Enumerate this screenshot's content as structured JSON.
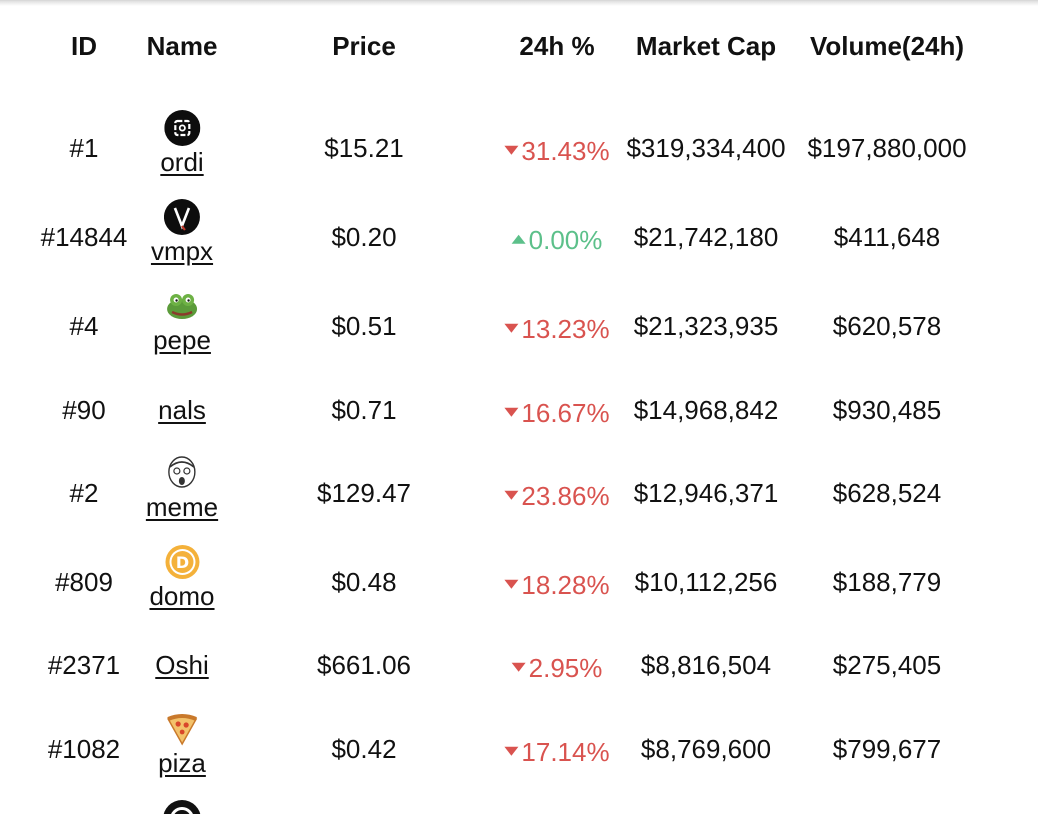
{
  "table": {
    "headers": {
      "id": "ID",
      "name": "Name",
      "price": "Price",
      "change": "24h %",
      "market_cap": "Market Cap",
      "volume": "Volume(24h)"
    },
    "rows": [
      {
        "id": "#1",
        "name": "ordi",
        "icon": "ordi-logo-icon",
        "price": "$15.21",
        "change": "31.43%",
        "direction": "down",
        "market_cap": "$319,334,400",
        "volume": "$197,880,000"
      },
      {
        "id": "#14844",
        "name": "vmpx",
        "icon": "vmpx-logo-icon",
        "price": "$0.20",
        "change": "0.00%",
        "direction": "up",
        "market_cap": "$21,742,180",
        "volume": "$411,648"
      },
      {
        "id": "#4",
        "name": "pepe",
        "icon": "pepe-frog-icon",
        "price": "$0.51",
        "change": "13.23%",
        "direction": "down",
        "market_cap": "$21,323,935",
        "volume": "$620,578"
      },
      {
        "id": "#90",
        "name": "nals",
        "icon": "",
        "price": "$0.71",
        "change": "16.67%",
        "direction": "down",
        "market_cap": "$14,968,842",
        "volume": "$930,485"
      },
      {
        "id": "#2",
        "name": "meme",
        "icon": "meme-face-icon",
        "price": "$129.47",
        "change": "23.86%",
        "direction": "down",
        "market_cap": "$12,946,371",
        "volume": "$628,524"
      },
      {
        "id": "#809",
        "name": "domo",
        "icon": "domo-coin-icon",
        "price": "$0.48",
        "change": "18.28%",
        "direction": "down",
        "market_cap": "$10,112,256",
        "volume": "$188,779"
      },
      {
        "id": "#2371",
        "name": "Oshi",
        "icon": "",
        "price": "$661.06",
        "change": "2.95%",
        "direction": "down",
        "market_cap": "$8,816,504",
        "volume": "$275,405"
      },
      {
        "id": "#1082",
        "name": "piza",
        "icon": "pizza-slice-icon",
        "price": "$0.42",
        "change": "17.14%",
        "direction": "down",
        "market_cap": "$8,769,600",
        "volume": "$799,677"
      }
    ]
  },
  "colors": {
    "down": "#d9534f",
    "up": "#5cc08a",
    "text": "#111111"
  }
}
